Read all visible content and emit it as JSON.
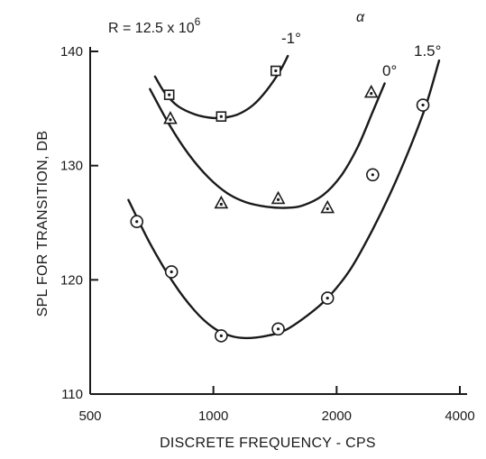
{
  "chart_data": {
    "type": "scatter",
    "title": "",
    "xlabel": "DISCRETE FREQUENCY - CPS",
    "ylabel": "SPL FOR TRANSITION, DB",
    "x_scale": "log",
    "xlim": [
      500,
      4000
    ],
    "ylim": [
      110,
      140
    ],
    "x_ticks": [
      {
        "value": 500,
        "label": "500"
      },
      {
        "value": 1000,
        "label": "1000"
      },
      {
        "value": 2000,
        "label": "2000"
      },
      {
        "value": 4000,
        "label": "4000"
      }
    ],
    "y_ticks": [
      {
        "value": 110,
        "label": "110"
      },
      {
        "value": 120,
        "label": "120"
      },
      {
        "value": 130,
        "label": "130"
      },
      {
        "value": 140,
        "label": "140"
      }
    ],
    "grid": false,
    "annotations": {
      "reynolds": "R = 12.5 x 10",
      "reynolds_exp": "6",
      "alpha": "α"
    },
    "series": [
      {
        "name": "-1°",
        "marker": "square-dot",
        "points": [
          [
            780,
            136.2
          ],
          [
            1045,
            134.3
          ],
          [
            1420,
            138.3
          ]
        ],
        "curve": [
          [
            720,
            137.8
          ],
          [
            760,
            136.4
          ],
          [
            820,
            135.2
          ],
          [
            900,
            134.5
          ],
          [
            980,
            134.2
          ],
          [
            1060,
            134.2
          ],
          [
            1150,
            134.5
          ],
          [
            1250,
            135.3
          ],
          [
            1350,
            136.6
          ],
          [
            1450,
            138.2
          ],
          [
            1520,
            139.6
          ]
        ]
      },
      {
        "name": "0°",
        "marker": "triangle-dot",
        "points": [
          [
            785,
            134.1
          ],
          [
            1045,
            126.7
          ],
          [
            1440,
            127.1
          ],
          [
            1900,
            126.3
          ],
          [
            2430,
            136.4
          ]
        ],
        "curve": [
          [
            700,
            136.7
          ],
          [
            780,
            133.6
          ],
          [
            870,
            131.0
          ],
          [
            970,
            129.0
          ],
          [
            1080,
            127.6
          ],
          [
            1200,
            126.8
          ],
          [
            1350,
            126.4
          ],
          [
            1500,
            126.3
          ],
          [
            1650,
            126.5
          ],
          [
            1850,
            127.4
          ],
          [
            2050,
            129.1
          ],
          [
            2250,
            131.6
          ],
          [
            2450,
            134.7
          ],
          [
            2620,
            137.2
          ]
        ]
      },
      {
        "name": "1.5°",
        "marker": "circle-dot",
        "points": [
          [
            650,
            125.1
          ],
          [
            790,
            120.7
          ],
          [
            1045,
            115.1
          ],
          [
            1440,
            115.7
          ],
          [
            1900,
            118.4
          ],
          [
            2450,
            129.2
          ],
          [
            3250,
            135.3
          ]
        ],
        "curve": [
          [
            620,
            127.0
          ],
          [
            700,
            123.2
          ],
          [
            800,
            119.7
          ],
          [
            900,
            117.3
          ],
          [
            1000,
            115.8
          ],
          [
            1100,
            115.1
          ],
          [
            1200,
            114.9
          ],
          [
            1350,
            115.1
          ],
          [
            1500,
            115.6
          ],
          [
            1700,
            116.9
          ],
          [
            1900,
            118.4
          ],
          [
            2150,
            120.8
          ],
          [
            2400,
            123.8
          ],
          [
            2700,
            127.5
          ],
          [
            3000,
            131.3
          ],
          [
            3300,
            135.2
          ],
          [
            3560,
            139.2
          ]
        ]
      }
    ]
  }
}
